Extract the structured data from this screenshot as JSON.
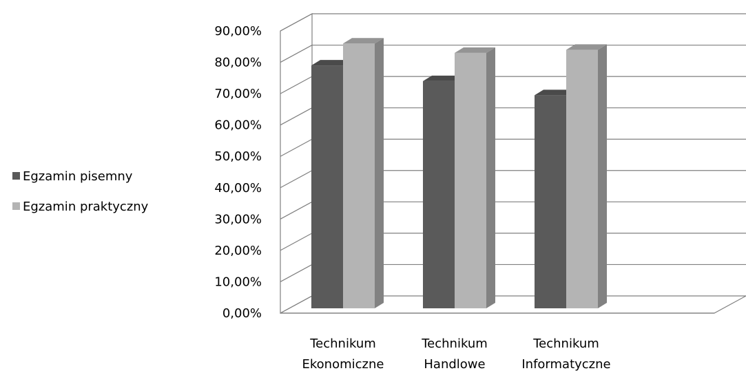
{
  "chart_data": {
    "type": "bar",
    "style": "3d-clustered-column",
    "categories": [
      [
        "Technikum",
        "Ekonomiczne"
      ],
      [
        "Technikum",
        "Handlowe"
      ],
      [
        "Technikum",
        "Informatyczne"
      ]
    ],
    "series": [
      {
        "name": "Egzamin pisemny",
        "values": [
          0.79,
          0.74,
          0.695
        ],
        "color": "#5a5a5a"
      },
      {
        "name": "Egzamin praktyczny",
        "values": [
          0.86,
          0.83,
          0.84
        ],
        "color": "#b4b4b4"
      }
    ],
    "ylim": [
      0,
      0.9
    ],
    "ytick_step": 0.1,
    "ytick_labels": [
      "0,00%",
      "10,00%",
      "20,00%",
      "30,00%",
      "40,00%",
      "50,00%",
      "60,00%",
      "70,00%",
      "80,00%",
      "90,00%"
    ],
    "grid": true,
    "legend_position": "left",
    "title": "",
    "xlabel": "",
    "ylabel": ""
  }
}
